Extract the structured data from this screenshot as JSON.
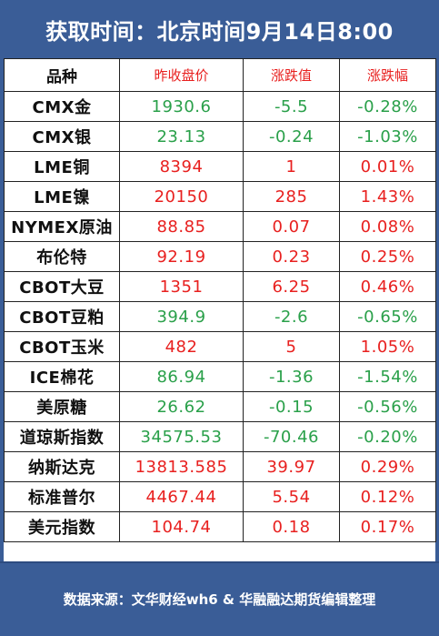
{
  "title": "获取时间：北京时间9月14日8:00",
  "headers": [
    "品种",
    "昨收盘价",
    "涨跌值",
    "涨跌幅"
  ],
  "rows": [
    {
      "name": "CMX金",
      "close": "1930.6",
      "change": "-5.5",
      "pct": "-0.28%",
      "dir": "down"
    },
    {
      "name": "CMX银",
      "close": "23.13",
      "change": "-0.24",
      "pct": "-1.03%",
      "dir": "down"
    },
    {
      "name": "LME铜",
      "close": "8394",
      "change": "1",
      "pct": "0.01%",
      "dir": "up"
    },
    {
      "name": "LME镍",
      "close": "20150",
      "change": "285",
      "pct": "1.43%",
      "dir": "up"
    },
    {
      "name": "NYMEX原油",
      "close": "88.85",
      "change": "0.07",
      "pct": "0.08%",
      "dir": "up"
    },
    {
      "name": "布伦特",
      "close": "92.19",
      "change": "0.23",
      "pct": "0.25%",
      "dir": "up"
    },
    {
      "name": "CBOT大豆",
      "close": "1351",
      "change": "6.25",
      "pct": "0.46%",
      "dir": "up"
    },
    {
      "name": "CBOT豆粕",
      "close": "394.9",
      "change": "-2.6",
      "pct": "-0.65%",
      "dir": "down"
    },
    {
      "name": "CBOT玉米",
      "close": "482",
      "change": "5",
      "pct": "1.05%",
      "dir": "up"
    },
    {
      "name": "ICE棉花",
      "close": "86.94",
      "change": "-1.36",
      "pct": "-1.54%",
      "dir": "down"
    },
    {
      "name": "美原糖",
      "close": "26.62",
      "change": "-0.15",
      "pct": "-0.56%",
      "dir": "down"
    },
    {
      "name": "道琼斯指数",
      "close": "34575.53",
      "change": "-70.46",
      "pct": "-0.20%",
      "dir": "down"
    },
    {
      "name": "纳斯达克",
      "close": "13813.585",
      "change": "39.97",
      "pct": "0.29%",
      "dir": "up"
    },
    {
      "name": "标准普尔",
      "close": "4467.44",
      "change": "5.54",
      "pct": "0.12%",
      "dir": "up"
    },
    {
      "name": "美元指数",
      "close": "104.74",
      "change": "0.18",
      "pct": "0.17%",
      "dir": "up"
    }
  ],
  "footer": "数据来源：文华财经wh6 & 华融融达期货编辑整理",
  "colors": {
    "header_bg": "#3a5d97",
    "up": "#e8201f",
    "down": "#2aa04a"
  }
}
